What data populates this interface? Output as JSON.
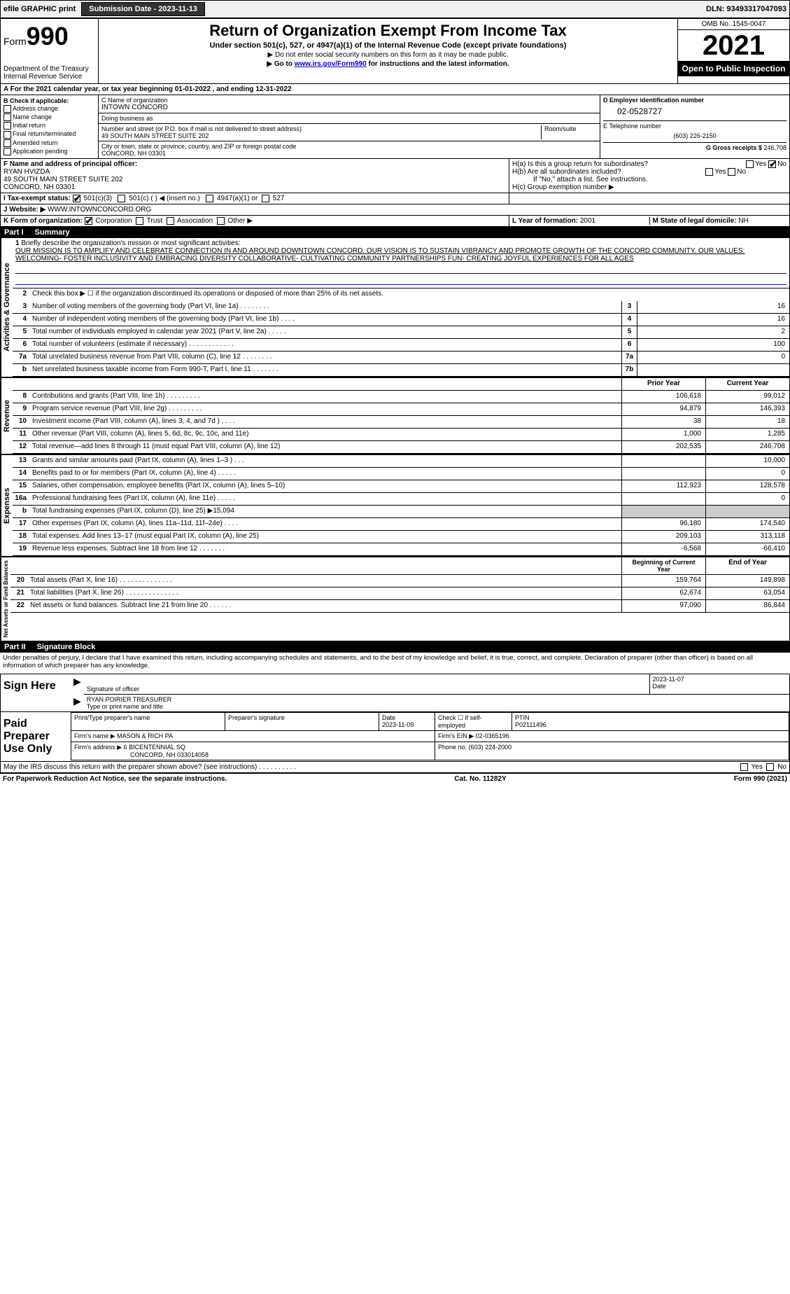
{
  "topbar": {
    "efile": "efile GRAPHIC print",
    "submission_label": "Submission Date - 2023-11-13",
    "dln": "DLN: 93493317047093"
  },
  "header": {
    "form_prefix": "Form",
    "form_num": "990",
    "dept": "Department of the Treasury",
    "irs": "Internal Revenue Service",
    "title": "Return of Organization Exempt From Income Tax",
    "subtitle": "Under section 501(c), 527, or 4947(a)(1) of the Internal Revenue Code (except private foundations)",
    "note1": "▶ Do not enter social security numbers on this form as it may be made public.",
    "note2_pre": "▶ Go to ",
    "note2_link": "www.irs.gov/Form990",
    "note2_post": " for instructions and the latest information.",
    "omb": "OMB No. 1545-0047",
    "year": "2021",
    "open": "Open to Public Inspection"
  },
  "period": {
    "text": "A For the 2021 calendar year, or tax year beginning 01-01-2022    , and ending 12-31-2022"
  },
  "checkboxes": {
    "hdr": "B Check if applicable:",
    "addr": "Address change",
    "name": "Name change",
    "initial": "Initial return",
    "final": "Final return/terminated",
    "amended": "Amended return",
    "app": "Application pending"
  },
  "entity": {
    "name_label": "C Name of organization",
    "name": "INTOWN CONCORD",
    "dba_label": "Doing business as",
    "dba": "",
    "street_label": "Number and street (or P.O. box if mail is not delivered to street address)",
    "room_label": "Room/suite",
    "street": "49 SOUTH MAIN STREET SUITE 202",
    "city_label": "City or town, state or province, country, and ZIP or foreign postal code",
    "city": "CONCORD, NH  03301",
    "ein_label": "D Employer identification number",
    "ein": "02-0528727",
    "phone_label": "E Telephone number",
    "phone": "(603) 226-2150",
    "gross_label": "G Gross receipts $",
    "gross": "246,708"
  },
  "officer": {
    "label": "F  Name and address of principal officer:",
    "name": "RYAN HVIZDA",
    "addr1": "49 SOUTH MAIN STREET SUITE 202",
    "addr2": "CONCORD, NH  03301"
  },
  "groupret": {
    "ha": "H(a)  Is this a group return for subordinates?",
    "hb": "H(b)  Are all subordinates included?",
    "hb_note": "If \"No,\" attach a list. See instructions.",
    "hc": "H(c)  Group exemption number ▶",
    "yes": "Yes",
    "no": "No"
  },
  "taxstatus": {
    "label": "I  Tax-exempt status:",
    "c3": "501(c)(3)",
    "c_ins": "501(c) (   ) ◀ (insert no.)",
    "a1": "4947(a)(1) or",
    "s527": "527"
  },
  "website": {
    "label": "J Website: ▶",
    "val": "WWW.INTOWNCONCORD.ORG"
  },
  "formorg": {
    "label": "K Form of organization:",
    "corp": "Corporation",
    "trust": "Trust",
    "assoc": "Association",
    "other": "Other ▶",
    "year_label": "L Year of formation:",
    "year": "2001",
    "state_label": "M State of legal domicile:",
    "state": "NH"
  },
  "part1": {
    "label": "Part I",
    "title": "Summary"
  },
  "summary": {
    "q1_label": "1",
    "q1": "Briefly describe the organization's mission or most significant activities:",
    "mission": "OUR MISSION IS TO AMPLIFY AND CELEBRATE CONNECTION IN AND AROUND DOWNTOWN CONCORD. OUR VISION IS TO SUSTAIN VIBRANCY AND PROMOTE GROWTH OF THE CONCORD COMMUNITY. OUR VALUES: WELCOMING- FOSTER INCLUSIVITY AND EMBRACING DIVERSITY COLLABORATIVE- CULTIVATING COMMUNITY PARTNERSHIPS FUN- CREATING JOYFUL EXPERIENCES FOR ALL AGES",
    "q2": "Check this box ▶ ☐  if the organization discontinued its operations or disposed of more than 25% of its net assets.",
    "rows_gov": [
      {
        "n": "3",
        "d": "Number of voting members of the governing body (Part VI, line 1a)   .    .    .    .    .    .    .    .",
        "b": "3",
        "v": "16"
      },
      {
        "n": "4",
        "d": "Number of independent voting members of the governing body (Part VI, line 1b)   .    .    .    .",
        "b": "4",
        "v": "16"
      },
      {
        "n": "5",
        "d": "Total number of individuals employed in calendar year 2021 (Part V, line 2a)   .    .    .    .    .",
        "b": "5",
        "v": "2"
      },
      {
        "n": "6",
        "d": "Total number of volunteers (estimate if necessary)   .    .    .    .    .    .    .    .    .    .    .    .",
        "b": "6",
        "v": "100"
      },
      {
        "n": "7a",
        "d": "Total unrelated business revenue from Part VIII, column (C), line 12   .    .    .    .    .    .    .    .",
        "b": "7a",
        "v": "0"
      },
      {
        "n": "b",
        "d": "Net unrelated business taxable income from Form 990-T, Part I, line 11   .    .    .    .    .    .    .",
        "b": "7b",
        "v": ""
      }
    ],
    "col_prior": "Prior Year",
    "col_current": "Current Year",
    "rows_rev": [
      {
        "n": "8",
        "d": "Contributions and grants (Part VIII, line 1h)   .    .    .    .    .    .    .    .    .",
        "p": "106,618",
        "c": "99,012"
      },
      {
        "n": "9",
        "d": "Program service revenue (Part VIII, line 2g)   .    .    .    .    .    .    .    .    .",
        "p": "94,879",
        "c": "146,393"
      },
      {
        "n": "10",
        "d": "Investment income (Part VIII, column (A), lines 3, 4, and 7d )   .    .    .    .",
        "p": "38",
        "c": "18"
      },
      {
        "n": "11",
        "d": "Other revenue (Part VIII, column (A), lines 5, 6d, 8c, 9c, 10c, and 11e)",
        "p": "1,000",
        "c": "1,285"
      },
      {
        "n": "12",
        "d": "Total revenue—add lines 8 through 11 (must equal Part VIII, column (A), line 12)",
        "p": "202,535",
        "c": "246,708"
      }
    ],
    "rows_exp": [
      {
        "n": "13",
        "d": "Grants and similar amounts paid (Part IX, column (A), lines 1–3 )   .    .    .",
        "p": "",
        "c": "10,000"
      },
      {
        "n": "14",
        "d": "Benefits paid to or for members (Part IX, column (A), line 4)   .    .    .    .    .",
        "p": "",
        "c": "0"
      },
      {
        "n": "15",
        "d": "Salaries, other compensation, employee benefits (Part IX, column (A), lines 5–10)",
        "p": "112,923",
        "c": "128,578"
      },
      {
        "n": "16a",
        "d": "Professional fundraising fees (Part IX, column (A), line 11e)   .    .    .    .    .",
        "p": "",
        "c": "0"
      },
      {
        "n": "b",
        "d": "Total fundraising expenses (Part IX, column (D), line 25) ▶15,094",
        "p": "shaded",
        "c": "shaded"
      },
      {
        "n": "17",
        "d": "Other expenses (Part IX, column (A), lines 11a–11d, 11f–24e)   .    .    .    .",
        "p": "96,180",
        "c": "174,540"
      },
      {
        "n": "18",
        "d": "Total expenses. Add lines 13–17 (must equal Part IX, column (A), line 25)",
        "p": "209,103",
        "c": "313,118"
      },
      {
        "n": "19",
        "d": "Revenue less expenses. Subtract line 18 from line 12   .    .    .    .    .    .    .",
        "p": "-6,568",
        "c": "-66,410"
      }
    ],
    "col_begin": "Beginning of Current Year",
    "col_end": "End of Year",
    "rows_net": [
      {
        "n": "20",
        "d": "Total assets (Part X, line 16)   .    .    .    .    .    .    .    .    .    .    .    .    .    .",
        "p": "159,764",
        "c": "149,898"
      },
      {
        "n": "21",
        "d": "Total liabilities (Part X, line 26)   .    .    .    .    .    .    .    .    .    .    .    .    .    .",
        "p": "62,674",
        "c": "63,054"
      },
      {
        "n": "22",
        "d": "Net assets or fund balances. Subtract line 21 from line 20   .    .    .    .    .    .",
        "p": "97,090",
        "c": "86,844"
      }
    ],
    "vlabels": {
      "gov": "Activities & Governance",
      "rev": "Revenue",
      "exp": "Expenses",
      "net": "Net Assets or Fund Balances"
    }
  },
  "part2": {
    "label": "Part II",
    "title": "Signature Block",
    "declare": "Under penalties of perjury, I declare that I have examined this return, including accompanying schedules and statements, and to the best of my knowledge and belief, it is true, correct, and complete. Declaration of preparer (other than officer) is based on all information of which preparer has any knowledge."
  },
  "sign": {
    "here": "Sign Here",
    "sig_label": "Signature of officer",
    "date_label": "Date",
    "date": "2023-11-07",
    "name": "RYAN POIRIER  TREASURER",
    "name_label": "Type or print name and title"
  },
  "preparer": {
    "label": "Paid Preparer Use Only",
    "name_label": "Print/Type preparer's name",
    "sig_label": "Preparer's signature",
    "date_label": "Date",
    "date": "2023-11-09",
    "check_label": "Check ☐ if self-employed",
    "ptin_label": "PTIN",
    "ptin": "P02111496",
    "firm_name_label": "Firm's name    ▶",
    "firm_name": "MASON & RICH PA",
    "firm_ein_label": "Firm's EIN ▶",
    "firm_ein": "02-0365196",
    "firm_addr_label": "Firm's address ▶",
    "firm_addr1": "6 BICENTENNIAL SQ",
    "firm_addr2": "CONCORD, NH  033014058",
    "phone_label": "Phone no.",
    "phone": "(603) 224-2000"
  },
  "discuss": {
    "q": "May the IRS discuss this return with the preparer shown above? (see instructions)   .    .    .    .    .    .    .    .    .    .",
    "yes": "Yes",
    "no": "No"
  },
  "footer": {
    "left": "For Paperwork Reduction Act Notice, see the separate instructions.",
    "mid": "Cat. No. 11282Y",
    "right": "Form 990 (2021)"
  }
}
